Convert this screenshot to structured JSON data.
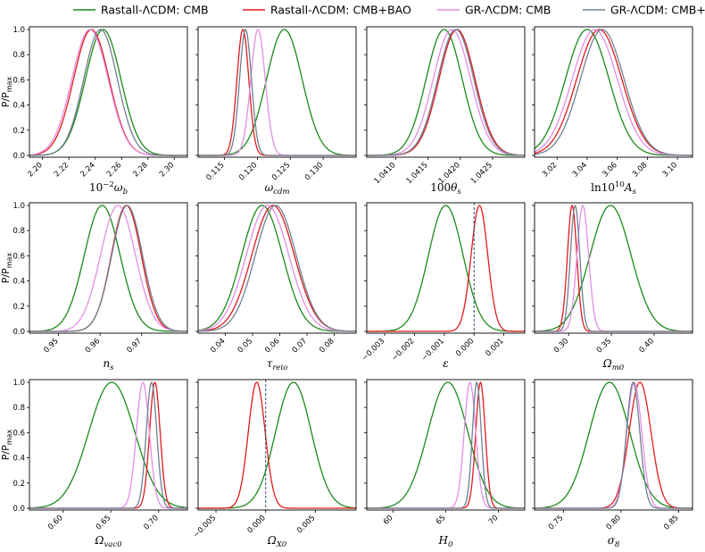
{
  "legend": [
    {
      "label": "Rastall-ΛCDM: CMB",
      "color": "#1a8a1a"
    },
    {
      "label": "Rastall-ΛCDM: CMB+BAO",
      "color": "#e31a1c"
    },
    {
      "label": "GR-ΛCDM: CMB",
      "color": "#e48ee6"
    },
    {
      "label": "GR-ΛCDM: CMB+BAO",
      "color": "#708090"
    }
  ],
  "ylabel": "P/P",
  "ylabel_sub": "max",
  "yticks": [
    "0.0",
    "0.2",
    "0.4",
    "0.6",
    "0.8",
    "1.0"
  ],
  "chart_data": [
    {
      "type": "line",
      "xlabel": "10⁻²ω_b",
      "label_main": "10",
      "label_sup": "−2",
      "label_tail": "ω",
      "label_sub": "b",
      "xlim": [
        2.19,
        2.31
      ],
      "ticks": [
        2.2,
        2.22,
        2.24,
        2.26,
        2.28,
        2.3
      ],
      "tick_labels": [
        "2.20",
        "2.22",
        "2.24",
        "2.26",
        "2.28",
        "2.30"
      ],
      "series": [
        {
          "name": "Rastall-ΛCDM: CMB",
          "mu": 2.246,
          "sigma": 0.0135
        },
        {
          "name": "Rastall-ΛCDM: CMB+BAO",
          "mu": 2.237,
          "sigma": 0.0135
        },
        {
          "name": "GR-ΛCDM: CMB",
          "mu": 2.236,
          "sigma": 0.0138
        },
        {
          "name": "GR-ΛCDM: CMB+BAO",
          "mu": 2.244,
          "sigma": 0.0128
        }
      ]
    },
    {
      "type": "line",
      "xlabel": "ω_cdm",
      "label_main": "",
      "label_sup": "",
      "label_tail": "ω",
      "label_sub": "cdm",
      "xlim": [
        0.111,
        0.135
      ],
      "ticks": [
        0.115,
        0.12,
        0.125,
        0.13
      ],
      "tick_labels": [
        "0.115",
        "0.120",
        "0.125",
        "0.130"
      ],
      "series": [
        {
          "name": "Rastall-ΛCDM: CMB",
          "mu": 0.1241,
          "sigma": 0.0027
        },
        {
          "name": "Rastall-ΛCDM: CMB+BAO",
          "mu": 0.1178,
          "sigma": 0.0009
        },
        {
          "name": "GR-ΛCDM: CMB",
          "mu": 0.1201,
          "sigma": 0.0011
        },
        {
          "name": "GR-ΛCDM: CMB+BAO",
          "mu": 0.1182,
          "sigma": 0.0009
        }
      ]
    },
    {
      "type": "line",
      "xlabel": "100θ_s",
      "label_main": "100",
      "label_sup": "",
      "label_tail": "θ",
      "label_sub": "s",
      "xlim": [
        1.04055,
        1.043
      ],
      "ticks": [
        1.041,
        1.0415,
        1.042,
        1.0425
      ],
      "tick_labels": [
        "1.0410",
        "1.0415",
        "1.0420",
        "1.0425"
      ],
      "series": [
        {
          "name": "Rastall-ΛCDM: CMB",
          "mu": 1.04175,
          "sigma": 0.00028
        },
        {
          "name": "Rastall-ΛCDM: CMB+BAO",
          "mu": 1.04195,
          "sigma": 0.00028
        },
        {
          "name": "GR-ΛCDM: CMB",
          "mu": 1.04187,
          "sigma": 0.00029
        },
        {
          "name": "GR-ΛCDM: CMB+BAO",
          "mu": 1.04193,
          "sigma": 0.00028
        }
      ]
    },
    {
      "type": "line",
      "xlabel": "ln10¹⁰A_s",
      "label_main": "ln10",
      "label_sup": "10",
      "label_tail": "A",
      "label_sub": "s",
      "xlim": [
        3.005,
        3.11
      ],
      "ticks": [
        3.02,
        3.04,
        3.06,
        3.08,
        3.1
      ],
      "tick_labels": [
        "3.02",
        "3.04",
        "3.06",
        "3.08",
        "3.10"
      ],
      "series": [
        {
          "name": "Rastall-ΛCDM: CMB",
          "mu": 3.04,
          "sigma": 0.0145
        },
        {
          "name": "Rastall-ΛCDM: CMB+BAO",
          "mu": 3.048,
          "sigma": 0.015
        },
        {
          "name": "GR-ΛCDM: CMB",
          "mu": 3.045,
          "sigma": 0.015
        },
        {
          "name": "GR-ΛCDM: CMB+BAO",
          "mu": 3.05,
          "sigma": 0.0145
        }
      ]
    },
    {
      "type": "line",
      "xlabel": "n_s",
      "label_main": "",
      "label_sup": "",
      "label_tail": "n",
      "label_sub": "s",
      "xlim": [
        0.943,
        0.981
      ],
      "ticks": [
        0.95,
        0.96,
        0.97
      ],
      "tick_labels": [
        "0.95",
        "0.96",
        "0.97"
      ],
      "series": [
        {
          "name": "Rastall-ΛCDM: CMB",
          "mu": 0.9605,
          "sigma": 0.0043
        },
        {
          "name": "Rastall-ΛCDM: CMB+BAO",
          "mu": 0.9663,
          "sigma": 0.0036
        },
        {
          "name": "GR-ΛCDM: CMB",
          "mu": 0.9643,
          "sigma": 0.0042
        },
        {
          "name": "GR-ΛCDM: CMB+BAO",
          "mu": 0.9665,
          "sigma": 0.0037
        }
      ]
    },
    {
      "type": "line",
      "xlabel": "τ_reio",
      "label_main": "",
      "label_sup": "",
      "label_tail": "τ",
      "label_sub": "reio",
      "xlim": [
        0.03,
        0.088
      ],
      "ticks": [
        0.04,
        0.05,
        0.06,
        0.07,
        0.08
      ],
      "tick_labels": [
        "0.04",
        "0.05",
        "0.06",
        "0.07",
        "0.08"
      ],
      "series": [
        {
          "name": "Rastall-ΛCDM: CMB",
          "mu": 0.0535,
          "sigma": 0.0075
        },
        {
          "name": "Rastall-ΛCDM: CMB+BAO",
          "mu": 0.0575,
          "sigma": 0.0078
        },
        {
          "name": "GR-ΛCDM: CMB",
          "mu": 0.0555,
          "sigma": 0.0078
        },
        {
          "name": "GR-ΛCDM: CMB+BAO",
          "mu": 0.0585,
          "sigma": 0.0075
        }
      ]
    },
    {
      "type": "line",
      "xlabel": "ε",
      "label_main": "",
      "label_sup": "",
      "label_tail": "ε",
      "label_sub": "",
      "xlim": [
        -0.0036,
        0.0017
      ],
      "ticks": [
        -0.003,
        -0.002,
        -0.001,
        0.0,
        0.001
      ],
      "tick_labels": [
        "−0.003",
        "−0.002",
        "−0.001",
        "0.000",
        "0.001"
      ],
      "vline": 0.0,
      "series": [
        {
          "name": "Rastall-ΛCDM: CMB",
          "mu": -0.00095,
          "sigma": 0.00058
        },
        {
          "name": "Rastall-ΛCDM: CMB+BAO",
          "mu": 0.00018,
          "sigma": 0.00028
        }
      ]
    },
    {
      "type": "line",
      "xlabel": "Ω_m0",
      "label_main": "",
      "label_sup": "",
      "label_tail": "Ω",
      "label_sub": "m0",
      "xlim": [
        0.26,
        0.445
      ],
      "ticks": [
        0.3,
        0.35,
        0.4
      ],
      "tick_labels": [
        "0.30",
        "0.35",
        "0.40"
      ],
      "series": [
        {
          "name": "Rastall-ΛCDM: CMB",
          "mu": 0.349,
          "sigma": 0.024
        },
        {
          "name": "Rastall-ΛCDM: CMB+BAO",
          "mu": 0.304,
          "sigma": 0.0055
        },
        {
          "name": "GR-ΛCDM: CMB",
          "mu": 0.3165,
          "sigma": 0.0068
        },
        {
          "name": "GR-ΛCDM: CMB+BAO",
          "mu": 0.3075,
          "sigma": 0.0055
        }
      ]
    },
    {
      "type": "line",
      "xlabel": "Ω_vac0",
      "label_main": "",
      "label_sup": "",
      "label_tail": "Ω",
      "label_sub": "vac0",
      "xlim": [
        0.565,
        0.73
      ],
      "ticks": [
        0.6,
        0.65,
        0.7
      ],
      "tick_labels": [
        "0.60",
        "0.65",
        "0.70"
      ],
      "series": [
        {
          "name": "Rastall-ΛCDM: CMB",
          "mu": 0.651,
          "sigma": 0.024
        },
        {
          "name": "Rastall-ΛCDM: CMB+BAO",
          "mu": 0.696,
          "sigma": 0.0055
        },
        {
          "name": "GR-ΛCDM: CMB",
          "mu": 0.6835,
          "sigma": 0.0068
        },
        {
          "name": "GR-ΛCDM: CMB+BAO",
          "mu": 0.6925,
          "sigma": 0.0055
        }
      ]
    },
    {
      "type": "line",
      "xlabel": "Ω_X0",
      "label_main": "",
      "label_sup": "",
      "label_tail": "Ω",
      "label_sub": "X0",
      "xlim": [
        -0.0068,
        0.0091
      ],
      "ticks": [
        -0.005,
        0.0,
        0.005
      ],
      "tick_labels": [
        "−0.005",
        "0.000",
        "0.005"
      ],
      "vline": 0.0,
      "series": [
        {
          "name": "Rastall-ΛCDM: CMB",
          "mu": 0.0028,
          "sigma": 0.0018
        },
        {
          "name": "Rastall-ΛCDM: CMB+BAO",
          "mu": -0.0009,
          "sigma": 0.00085
        }
      ]
    },
    {
      "type": "line",
      "xlabel": "H_0",
      "label_main": "",
      "label_sup": "",
      "label_tail": "H",
      "label_sub": "0",
      "xlim": [
        57.5,
        72.5
      ],
      "ticks": [
        60,
        65,
        70
      ],
      "tick_labels": [
        "60",
        "65",
        "70"
      ],
      "series": [
        {
          "name": "Rastall-ΛCDM: CMB",
          "mu": 65.2,
          "sigma": 1.9
        },
        {
          "name": "Rastall-ΛCDM: CMB+BAO",
          "mu": 68.3,
          "sigma": 0.45
        },
        {
          "name": "GR-ΛCDM: CMB",
          "mu": 67.3,
          "sigma": 0.55
        },
        {
          "name": "GR-ΛCDM: CMB+BAO",
          "mu": 67.95,
          "sigma": 0.42
        }
      ]
    },
    {
      "type": "line",
      "xlabel": "σ_8",
      "label_main": "",
      "label_sup": "",
      "label_tail": "σ",
      "label_sub": "8",
      "xlim": [
        0.725,
        0.862
      ],
      "ticks": [
        0.75,
        0.8,
        0.85
      ],
      "tick_labels": [
        "0.75",
        "0.80",
        "0.85"
      ],
      "series": [
        {
          "name": "Rastall-ΛCDM: CMB",
          "mu": 0.79,
          "sigma": 0.0175
        },
        {
          "name": "Rastall-ΛCDM: CMB+BAO",
          "mu": 0.8165,
          "sigma": 0.0095
        },
        {
          "name": "GR-ΛCDM: CMB",
          "mu": 0.8115,
          "sigma": 0.0065
        },
        {
          "name": "GR-ΛCDM: CMB+BAO",
          "mu": 0.8105,
          "sigma": 0.0058
        }
      ]
    }
  ]
}
